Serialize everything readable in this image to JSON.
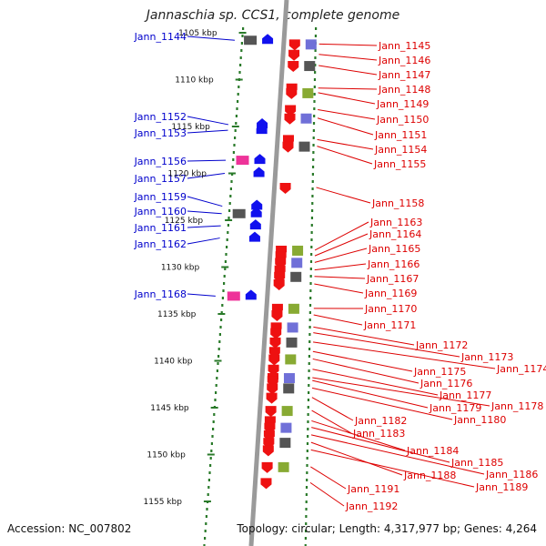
{
  "title": "Jannaschia sp. CCS1, complete genome",
  "accession": "Accession: NC_007802",
  "topology": "Topology: circular; Length: 4,317,977 bp; Genes: 4,264",
  "colors": {
    "left_label": "#0000cc",
    "right_label": "#dd0000",
    "backbone": "#9a9a9a",
    "tick_dots": "#2a7a2a",
    "forward_gene": "#ee1111",
    "reverse_gene": "#1111ee"
  },
  "scale": {
    "unit": "kbp",
    "ticks": [
      {
        "kbp": 1105,
        "label": "1105 kbp"
      },
      {
        "kbp": 1110,
        "label": "1110 kbp"
      },
      {
        "kbp": 1115,
        "label": "1115 kbp"
      },
      {
        "kbp": 1120,
        "label": "1120 kbp"
      },
      {
        "kbp": 1125,
        "label": "1125 kbp"
      },
      {
        "kbp": 1130,
        "label": "1130 kbp"
      },
      {
        "kbp": 1135,
        "label": "1135 kbp"
      },
      {
        "kbp": 1140,
        "label": "1140 kbp"
      },
      {
        "kbp": 1145,
        "label": "1145 kbp"
      },
      {
        "kbp": 1150,
        "label": "1150 kbp"
      },
      {
        "kbp": 1155,
        "label": "1155 kbp"
      }
    ]
  },
  "genes_left": [
    {
      "name": "Jann_1144",
      "kbp": 1105.8
    },
    {
      "name": "Jann_1152",
      "kbp": 1114.8
    },
    {
      "name": "Jann_1153",
      "kbp": 1115.4
    },
    {
      "name": "Jann_1156",
      "kbp": 1118.6
    },
    {
      "name": "Jann_1157",
      "kbp": 1120.0
    },
    {
      "name": "Jann_1159",
      "kbp": 1123.5
    },
    {
      "name": "Jann_1160",
      "kbp": 1124.3
    },
    {
      "name": "Jann_1161",
      "kbp": 1125.6
    },
    {
      "name": "Jann_1162",
      "kbp": 1126.9
    },
    {
      "name": "Jann_1168",
      "kbp": 1133.1
    }
  ],
  "genes_right": [
    {
      "name": "Jann_1145",
      "kbp": 1106.2
    },
    {
      "name": "Jann_1146",
      "kbp": 1107.3
    },
    {
      "name": "Jann_1147",
      "kbp": 1108.5
    },
    {
      "name": "Jann_1148",
      "kbp": 1110.9
    },
    {
      "name": "Jann_1149",
      "kbp": 1111.4
    },
    {
      "name": "Jann_1150",
      "kbp": 1113.2
    },
    {
      "name": "Jann_1151",
      "kbp": 1114.1
    },
    {
      "name": "Jann_1154",
      "kbp": 1116.4
    },
    {
      "name": "Jann_1155",
      "kbp": 1117.1
    },
    {
      "name": "Jann_1158",
      "kbp": 1121.5
    },
    {
      "name": "Jann_1163",
      "kbp": 1128.2
    },
    {
      "name": "Jann_1164",
      "kbp": 1128.8
    },
    {
      "name": "Jann_1165",
      "kbp": 1129.5
    },
    {
      "name": "Jann_1166",
      "kbp": 1130.3
    },
    {
      "name": "Jann_1167",
      "kbp": 1131.0
    },
    {
      "name": "Jann_1169",
      "kbp": 1131.8
    },
    {
      "name": "Jann_1170",
      "kbp": 1134.4
    },
    {
      "name": "Jann_1171",
      "kbp": 1135.1
    },
    {
      "name": "Jann_1172",
      "kbp": 1136.4
    },
    {
      "name": "Jann_1173",
      "kbp": 1137.0
    },
    {
      "name": "Jann_1174",
      "kbp": 1138.0
    },
    {
      "name": "Jann_1175",
      "kbp": 1139.0
    },
    {
      "name": "Jann_1176",
      "kbp": 1139.8
    },
    {
      "name": "Jann_1177",
      "kbp": 1140.9
    },
    {
      "name": "Jann_1178",
      "kbp": 1141.8
    },
    {
      "name": "Jann_1179",
      "kbp": 1142.1
    },
    {
      "name": "Jann_1180",
      "kbp": 1142.9
    },
    {
      "name": "Jann_1182",
      "kbp": 1143.9
    },
    {
      "name": "Jann_1183",
      "kbp": 1145.3
    },
    {
      "name": "Jann_1184",
      "kbp": 1146.4
    },
    {
      "name": "Jann_1185",
      "kbp": 1147.1
    },
    {
      "name": "Jann_1186",
      "kbp": 1147.9
    },
    {
      "name": "Jann_1188",
      "kbp": 1148.7
    },
    {
      "name": "Jann_1189",
      "kbp": 1149.5
    },
    {
      "name": "Jann_1191",
      "kbp": 1151.3
    },
    {
      "name": "Jann_1192",
      "kbp": 1153.0
    }
  ]
}
